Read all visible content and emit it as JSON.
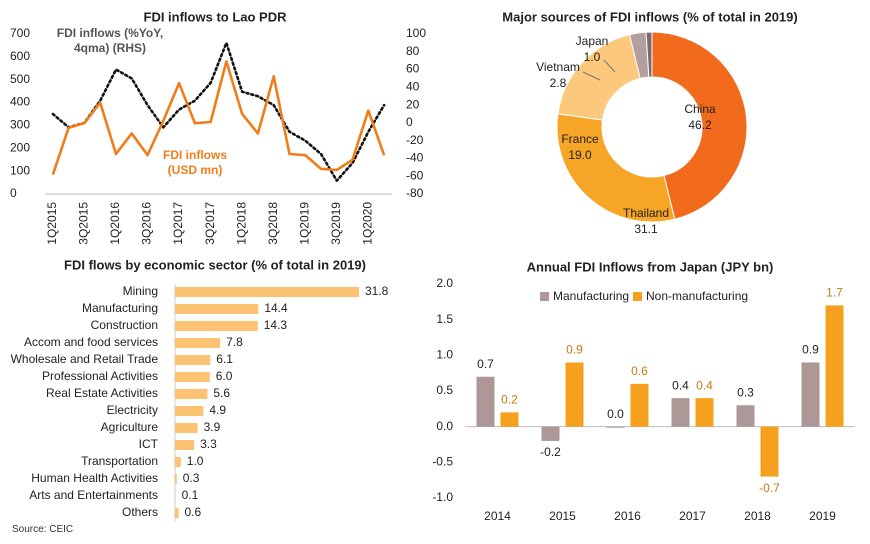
{
  "chart_data": [
    {
      "type": "line",
      "title": "FDI inflows to Lao PDR",
      "categories": [
        "1Q2015",
        null,
        "3Q2015",
        null,
        "1Q2016",
        null,
        "3Q2016",
        null,
        "1Q2017",
        null,
        "3Q2017",
        null,
        "1Q2018",
        null,
        "3Q2018",
        null,
        "1Q2019",
        null,
        "3Q2019",
        null,
        "1Q2020",
        null
      ],
      "series": [
        {
          "name": "FDI inflows (%YoY, 4qma) (RHS)",
          "color": "#111111",
          "dash": "dotted",
          "axis": "y2",
          "values": [
            10,
            -5,
            0,
            25,
            60,
            50,
            20,
            -5,
            15,
            25,
            45,
            90,
            35,
            30,
            20,
            -10,
            -20,
            -35,
            -65,
            -45,
            -10,
            20
          ]
        },
        {
          "name": "FDI inflows (USD mn)",
          "color": "#f07d1a",
          "values": [
            85,
            290,
            310,
            400,
            175,
            265,
            170,
            320,
            485,
            310,
            315,
            580,
            350,
            265,
            515,
            175,
            170,
            110,
            105,
            150,
            365,
            170
          ]
        }
      ],
      "ylim": [
        0,
        700
      ],
      "yticks": [
        0,
        100,
        200,
        300,
        400,
        500,
        600,
        700
      ],
      "y2lim": [
        -80,
        100
      ],
      "y2ticks": [
        -80,
        -60,
        -40,
        -20,
        0,
        20,
        40,
        60,
        80,
        100
      ]
    },
    {
      "type": "pie",
      "donut": true,
      "title": "Major sources of FDI inflows (% of total in 2019)",
      "categories": [
        "China",
        "Thailand",
        "France",
        "Vietnam",
        "Japan"
      ],
      "values": [
        46.2,
        31.1,
        19.0,
        2.8,
        1.0
      ],
      "value_labels": [
        "46.2",
        "31.1",
        "19.0",
        "2.8",
        "1.0"
      ],
      "colors": [
        "#f26b1d",
        "#f7a526",
        "#fcc87c",
        "#b49f9f",
        "#7b6b6b"
      ]
    },
    {
      "type": "bar",
      "orientation": "horizontal",
      "title": "FDI flows by economic sector (% of total in 2019)",
      "categories": [
        "Mining",
        "Manufacturing",
        "Construction",
        "Accom and food services",
        "Wholesale and Retail Trade",
        "Professional Activities",
        "Real Estate Activities",
        "Electricity",
        "Agriculture",
        "ICT",
        "Transportation",
        "Human Health Activities",
        "Arts and Entertainments",
        "Others"
      ],
      "values": [
        31.8,
        14.4,
        14.3,
        7.8,
        6.1,
        6.0,
        5.6,
        4.9,
        3.9,
        3.3,
        1.0,
        0.3,
        0.1,
        0.6
      ],
      "value_labels": [
        "31.8",
        "14.4",
        "14.3",
        "7.8",
        "6.1",
        "6.0",
        "5.6",
        "4.9",
        "3.9",
        "3.3",
        "1.0",
        "0.3",
        "0.1",
        "0.6"
      ],
      "color": "#fac271"
    },
    {
      "type": "grouped_bar",
      "title": "Annual FDI Inflows from Japan (JPY bn)",
      "categories": [
        "2014",
        "2015",
        "2016",
        "2017",
        "2018",
        "2019"
      ],
      "series": [
        {
          "name": "Manufacturing",
          "color": "#ae9797",
          "values": [
            0.7,
            -0.2,
            0.0,
            0.4,
            0.3,
            0.9
          ],
          "value_labels": [
            "0.7",
            "-0.2",
            "0.0",
            "0.4",
            "0.3",
            "0.9"
          ],
          "label_color": "#222222"
        },
        {
          "name": "Non-manufacturing",
          "color": "#f5a11f",
          "values": [
            0.2,
            0.9,
            0.6,
            0.4,
            -0.7,
            1.7
          ],
          "value_labels": [
            "0.2",
            "0.9",
            "0.6",
            "0.4",
            "-0.7",
            "1.7"
          ],
          "label_color": "#c97a10"
        }
      ],
      "ylim": [
        -1,
        2
      ],
      "yticks": [
        {
          "value": -1,
          "label": "-1.0"
        },
        {
          "value": -0.5,
          "label": "-0.5"
        },
        {
          "value": 0,
          "label": "0.0"
        },
        {
          "value": 0.5,
          "label": "0.5"
        },
        {
          "value": 1,
          "label": "1.0"
        },
        {
          "value": 1.5,
          "label": "1.5"
        },
        {
          "value": 2,
          "label": "2.0"
        }
      ],
      "legend": "top"
    }
  ],
  "source": "Source:  CEIC"
}
